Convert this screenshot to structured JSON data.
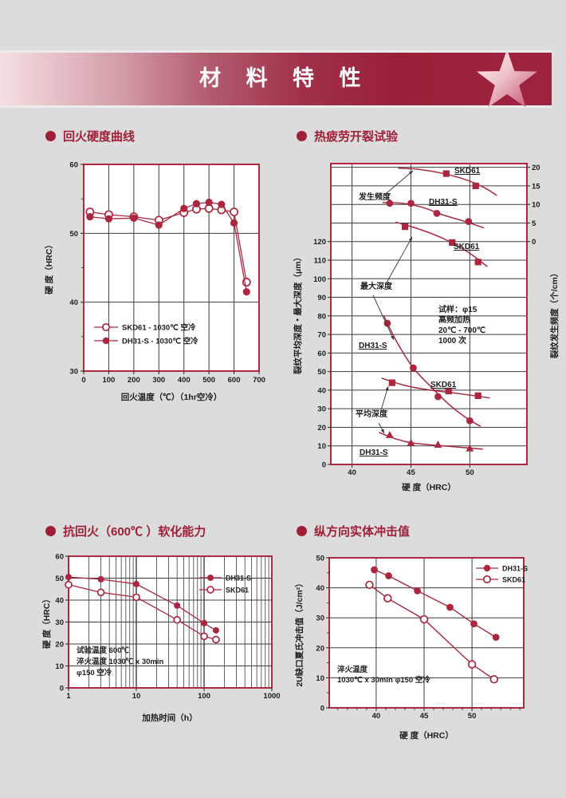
{
  "page": {
    "background": "#dcdcdc"
  },
  "banner": {
    "title": "材 料 特 性",
    "text_color": "#ffffff",
    "star_icon": "star"
  },
  "sections": [
    {
      "title": "回火硬度曲线"
    },
    {
      "title": "热疲劳开裂试验"
    },
    {
      "title": "抗回火（600℃ ）软化能力"
    },
    {
      "title": "纵方向实体冲击值"
    }
  ],
  "colors": {
    "series": "#ab2740",
    "plot_border": "#b02740",
    "grid": "#3c3c3c",
    "plot_bg": "#ffffff",
    "title_red": "#9e1f37",
    "text": "#1c1c1c"
  },
  "chart_data": [
    {
      "id": "tempering-hardness",
      "type": "line",
      "title": "回火硬度曲线",
      "xlabel": "回火温度（℃）（1hr空冷）",
      "ylabel": "硬 度（HRC）",
      "xlim": [
        0,
        700
      ],
      "ylim": [
        30,
        60
      ],
      "xticks": [
        [
          0,
          "0"
        ],
        [
          100,
          "100"
        ],
        [
          200,
          "200"
        ],
        [
          300,
          "300"
        ],
        [
          400,
          "400"
        ],
        [
          500,
          "500"
        ],
        [
          600,
          "600"
        ],
        [
          700,
          "700"
        ]
      ],
      "yticks": [
        [
          30,
          "30"
        ],
        [
          40,
          "40"
        ],
        [
          50,
          "50"
        ],
        [
          60,
          "60"
        ]
      ],
      "yminor": [
        35,
        45,
        55
      ],
      "xgrid": [
        100,
        200,
        300,
        400,
        500,
        600,
        700
      ],
      "ygrid": [
        40,
        50
      ],
      "legend_position": "bottom-left-inside",
      "series": [
        {
          "name": "SKD61  - 1030℃ 空冷",
          "marker": "circle-open",
          "legend": true,
          "connect": true,
          "points": [
            [
              25,
              53.1
            ],
            [
              100,
              52.7
            ],
            [
              200,
              52.4
            ],
            [
              300,
              51.9
            ],
            [
              400,
              53.0
            ],
            [
              450,
              53.5
            ],
            [
              500,
              53.6
            ],
            [
              550,
              53.4
            ],
            [
              600,
              53.1
            ],
            [
              650,
              42.9
            ]
          ]
        },
        {
          "name": "DH31-S  - 1030℃ 空冷",
          "marker": "circle-filled",
          "legend": true,
          "connect": true,
          "points": [
            [
              25,
              52.4
            ],
            [
              100,
              52.1
            ],
            [
              200,
              52.2
            ],
            [
              300,
              51.2
            ],
            [
              400,
              53.6
            ],
            [
              450,
              54.3
            ],
            [
              500,
              54.5
            ],
            [
              550,
              54.2
            ],
            [
              600,
              51.5
            ],
            [
              650,
              41.5
            ]
          ]
        }
      ]
    },
    {
      "id": "thermal-fatigue",
      "type": "scatter",
      "title": "热疲劳开裂试验",
      "xlabel": "硬 度（HRC）",
      "ylabel_left": "裂纹平均深度・最大深度（μm）",
      "ylabel_right": "裂纹发生频度（个/cm）",
      "xlim": [
        38.2,
        54.85
      ],
      "ylim_left": [
        0,
        162
      ],
      "right_axis": {
        "left_of_right0": 120,
        "left_per_right": 2
      },
      "xticks": [
        [
          40,
          "40"
        ],
        [
          45,
          "45"
        ],
        [
          50,
          "50"
        ]
      ],
      "yticks_left": [
        [
          0,
          "0"
        ],
        [
          10,
          "10"
        ],
        [
          20,
          "20"
        ],
        [
          30,
          "30"
        ],
        [
          40,
          "40"
        ],
        [
          50,
          "50"
        ],
        [
          60,
          "60"
        ],
        [
          70,
          "70"
        ],
        [
          80,
          "80"
        ],
        [
          90,
          "90"
        ],
        [
          100,
          "100"
        ],
        [
          110,
          "110"
        ],
        [
          120,
          "120"
        ]
      ],
      "yticks_right": [
        [
          120,
          "0"
        ],
        [
          130,
          "5"
        ],
        [
          140,
          "10"
        ],
        [
          150,
          "15"
        ],
        [
          160,
          "20"
        ]
      ],
      "xgrid": [
        40,
        45,
        50
      ],
      "ygrid": [
        10,
        20,
        30,
        40,
        50,
        60,
        70,
        80,
        90,
        100,
        110,
        120,
        130,
        140,
        150,
        160
      ],
      "annotations": [
        "发生频度",
        "最大深度",
        "平均深度"
      ],
      "note_lines": [
        "试样：φ15",
        "高频加热",
        "20℃ - 700℃",
        "1000 次"
      ],
      "series": [
        {
          "name": "SKD61",
          "group": "发生频度",
          "axis": "right",
          "marker": "square-filled",
          "points": [
            [
              48,
              18.3
            ],
            [
              50.5,
              15
            ]
          ],
          "curve": [
            [
              43.9,
              19.8
            ],
            [
              45.8,
              19.4
            ],
            [
              47.8,
              18.3
            ],
            [
              49.8,
              16.5
            ],
            [
              51.3,
              14.4
            ],
            [
              52.3,
              12.4
            ]
          ]
        },
        {
          "name": "DH31-S",
          "group": "发生频度",
          "axis": "right",
          "marker": "circle-filled",
          "points": [
            [
              43.2,
              10.3
            ],
            [
              45,
              10.3
            ],
            [
              47.2,
              7.6
            ],
            [
              49.9,
              5.4
            ]
          ],
          "curve": [
            [
              42.6,
              10.5
            ],
            [
              44.3,
              10.3
            ],
            [
              46,
              9.2
            ],
            [
              47.7,
              7.2
            ],
            [
              49.4,
              5.6
            ],
            [
              51.2,
              3.7
            ]
          ]
        },
        {
          "name": "SKD61",
          "group": "最大深度",
          "axis": "left",
          "marker": "square-filled",
          "points": [
            [
              44.5,
              128
            ],
            [
              48.5,
              119.5
            ],
            [
              50.7,
              109
            ]
          ],
          "curve": [
            [
              43.7,
              130.5
            ],
            [
              45.8,
              126.5
            ],
            [
              47.8,
              121.5
            ],
            [
              49.8,
              114.5
            ],
            [
              51.5,
              106.5
            ]
          ]
        },
        {
          "name": "DH31-S",
          "group": "最大深度",
          "axis": "left",
          "marker": "circle-filled",
          "points": [
            [
              43,
              76
            ],
            [
              45.2,
              52
            ],
            [
              47.3,
              36.5
            ],
            [
              50,
              23.5
            ]
          ],
          "curve": [
            [
              42.7,
              80
            ],
            [
              43.8,
              66
            ],
            [
              45.2,
              52
            ],
            [
              46.6,
              42.5
            ],
            [
              48.2,
              32.5
            ],
            [
              49.6,
              25.5
            ],
            [
              50.9,
              20.5
            ]
          ]
        },
        {
          "name": "SKD61",
          "group": "平均深度",
          "axis": "left",
          "marker": "square-filled",
          "points": [
            [
              43.4,
              44
            ],
            [
              48.2,
              39.5
            ],
            [
              50.7,
              37
            ]
          ],
          "curve": [
            [
              42.5,
              46.5
            ],
            [
              44.5,
              42.5
            ],
            [
              46.5,
              40.2
            ],
            [
              48.5,
              38.6
            ],
            [
              50.4,
              37
            ],
            [
              51.7,
              35.8
            ]
          ]
        },
        {
          "name": "DH31-S",
          "group": "平均深度",
          "axis": "left",
          "marker": "triangle-filled",
          "points": [
            [
              43.2,
              15.7
            ],
            [
              45,
              11.5
            ],
            [
              47.3,
              10.5
            ],
            [
              50,
              8.5
            ]
          ],
          "curve": [
            [
              42.3,
              17.2
            ],
            [
              43.6,
              14
            ],
            [
              45,
              11.7
            ],
            [
              46.6,
              10.6
            ],
            [
              48.3,
              9.7
            ],
            [
              50,
              8.8
            ],
            [
              51.1,
              8.2
            ]
          ]
        }
      ]
    },
    {
      "id": "softening",
      "type": "line",
      "title": "抗回火（600℃ ）软化能力",
      "xlabel": "加热时间（h）",
      "ylabel": "硬 度（HRC）",
      "xscale": "log",
      "xlim": [
        1,
        1000
      ],
      "ylim": [
        0,
        60
      ],
      "xticks": [
        [
          1,
          "1"
        ],
        [
          10,
          "10"
        ],
        [
          100,
          "100"
        ],
        [
          1000,
          "1000"
        ]
      ],
      "yticks": [
        [
          0,
          "0"
        ],
        [
          10,
          "10"
        ],
        [
          20,
          "20"
        ],
        [
          30,
          "30"
        ],
        [
          40,
          "40"
        ],
        [
          50,
          "50"
        ],
        [
          60,
          "60"
        ]
      ],
      "xgrid_major": [
        10,
        100
      ],
      "xgrid_minor": [
        2,
        3,
        4,
        5,
        6,
        7,
        8,
        9,
        20,
        30,
        40,
        50,
        60,
        70,
        80,
        90,
        200,
        300,
        400,
        500,
        600,
        700,
        800,
        900
      ],
      "ygrid": [
        10,
        20,
        30,
        40,
        50
      ],
      "note_lines": [
        "试验温度 600℃",
        "淬火温度 1030℃ x 30min",
        "φ150 空冷"
      ],
      "legend_position": "top-right-inside",
      "series": [
        {
          "name": "DH31-S",
          "marker": "circle-filled",
          "legend": true,
          "connect": true,
          "points": [
            [
              1,
              50.5
            ],
            [
              3,
              49.5
            ],
            [
              10,
              47.3
            ],
            [
              40,
              37.5
            ],
            [
              100,
              29.5
            ],
            [
              150,
              26.2
            ]
          ]
        },
        {
          "name": "SKD61",
          "marker": "circle-open",
          "legend": true,
          "connect": true,
          "points": [
            [
              1,
              47
            ],
            [
              3,
              43.5
            ],
            [
              10,
              41.3
            ],
            [
              40,
              31
            ],
            [
              100,
              23.5
            ],
            [
              150,
              22
            ]
          ]
        }
      ]
    },
    {
      "id": "impact",
      "type": "line",
      "title": "纵方向实体冲击值",
      "xlabel": "硬 度（HRC）",
      "ylabel": "2U缺口夏氏冲击值（J/cm²）",
      "xlim": [
        35.1,
        55.4
      ],
      "ylim": [
        0,
        50
      ],
      "xticks": [
        [
          40,
          "40"
        ],
        [
          45,
          "45"
        ],
        [
          50,
          "50"
        ]
      ],
      "yticks": [
        [
          0,
          "0"
        ],
        [
          10,
          "10"
        ],
        [
          20,
          "20"
        ],
        [
          30,
          "30"
        ],
        [
          40,
          "40"
        ],
        [
          50,
          "50"
        ]
      ],
      "yminor": [
        5,
        15,
        25,
        35,
        45
      ],
      "xminor": [
        36,
        37,
        38,
        39,
        41,
        42,
        43,
        44,
        46,
        47,
        48,
        49,
        51,
        52,
        53,
        54,
        55
      ],
      "xgrid": [
        40,
        45,
        50
      ],
      "ygrid": [
        10,
        20,
        30,
        40
      ],
      "note_lines": [
        "淬火温度",
        "1030℃ x 30min φ150 空冷"
      ],
      "legend_position": "top-right-inside",
      "series": [
        {
          "name": "DH31-S",
          "marker": "circle-filled",
          "legend": true,
          "connect": true,
          "points": [
            [
              39.8,
              46
            ],
            [
              41.3,
              44
            ],
            [
              44.3,
              39
            ],
            [
              47.7,
              33.5
            ],
            [
              50.2,
              28
            ],
            [
              52.5,
              23.5
            ]
          ]
        },
        {
          "name": "SKD61",
          "marker": "circle-open",
          "legend": true,
          "connect": true,
          "points": [
            [
              39.3,
              41
            ],
            [
              41.2,
              36.5
            ],
            [
              45,
              29.5
            ],
            [
              50,
              14.5
            ],
            [
              52.3,
              9.5
            ]
          ]
        }
      ]
    }
  ]
}
